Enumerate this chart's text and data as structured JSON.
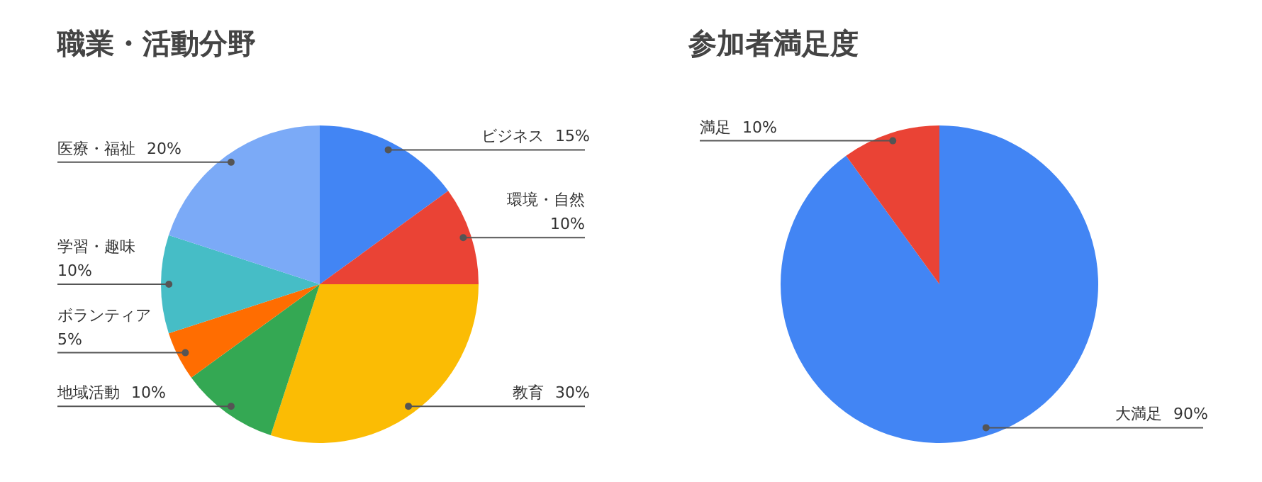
{
  "chart_data": [
    {
      "type": "pie",
      "title": "職業・活動分野",
      "categories": [
        "ビジネス",
        "環境・自然",
        "教育",
        "地域活動",
        "ボランティア",
        "学習・趣味",
        "医療・福祉"
      ],
      "values": [
        15,
        10,
        30,
        10,
        5,
        10,
        20
      ],
      "value_labels": [
        "15%",
        "10%",
        "30%",
        "10%",
        "5%",
        "10%",
        "20%"
      ],
      "colors": [
        "#4285f4",
        "#ea4335",
        "#fbbc04",
        "#34a853",
        "#ff6d01",
        "#46bdc6",
        "#7baaf7"
      ]
    },
    {
      "type": "pie",
      "title": "参加者満足度",
      "categories": [
        "大満足",
        "満足"
      ],
      "values": [
        90,
        10
      ],
      "value_labels": [
        "90%",
        "10%"
      ],
      "colors": [
        "#4285f4",
        "#ea4335"
      ]
    }
  ]
}
